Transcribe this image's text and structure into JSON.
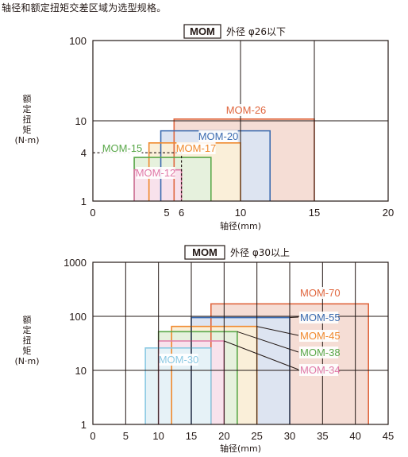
{
  "intro_text": "轴径和额定扭矩交差区域为选型规格。",
  "chart_data": [
    {
      "type": "area",
      "badge": "MOM",
      "title_rest": "外径 φ26以下",
      "xlabel": "轴径(mm)",
      "ylabel_lines": [
        "额",
        "定",
        "扭",
        "矩",
        "(N·m)"
      ],
      "xlim": [
        0,
        20
      ],
      "ylim": [
        1,
        100
      ],
      "yscale": "log",
      "xticks": [
        0,
        5,
        6,
        10,
        15,
        20
      ],
      "yticks": [
        1,
        4,
        10,
        100
      ],
      "grid": "on",
      "guide": {
        "x": 6,
        "y": 4
      },
      "series": [
        {
          "name": "MOM-26",
          "x": [
            5.5,
            15
          ],
          "y": [
            1,
            10.5
          ],
          "color": "#e0673f",
          "fill": "#f5ddd5"
        },
        {
          "name": "MOM-20",
          "x": [
            4.6,
            12
          ],
          "y": [
            1,
            7.5
          ],
          "color": "#3b6bb0",
          "fill": "#dde4f1"
        },
        {
          "name": "MOM-17",
          "x": [
            3.8,
            10
          ],
          "y": [
            1,
            5.3
          ],
          "color": "#f08a2e",
          "fill": "#faefd9"
        },
        {
          "name": "MOM-15",
          "x": [
            2.8,
            8
          ],
          "y": [
            1,
            3.5
          ],
          "color": "#5aa84a",
          "fill": "#e6f1dd"
        },
        {
          "name": "MOM-12",
          "x": [
            2.8,
            6
          ],
          "y": [
            1,
            2.45
          ],
          "color": "#e07aa8",
          "fill": "#f8e2ec"
        }
      ]
    },
    {
      "type": "area",
      "badge": "MOM",
      "title_rest": "外径 φ30以上",
      "xlabel": "轴径(mm)",
      "ylabel_lines": [
        "额",
        "定",
        "扭",
        "矩",
        "(N·m)"
      ],
      "xlim": [
        0,
        45
      ],
      "ylim": [
        1,
        1000
      ],
      "yscale": "log",
      "xticks": [
        0,
        5,
        10,
        15,
        20,
        25,
        30,
        35,
        40,
        45
      ],
      "yticks": [
        1,
        10,
        100,
        1000
      ],
      "grid": "on",
      "series": [
        {
          "name": "MOM-70",
          "x": [
            18,
            42
          ],
          "y": [
            1,
            170
          ],
          "color": "#e0673f",
          "fill": "#f5ddd5"
        },
        {
          "name": "MOM-55",
          "x": [
            15,
            30
          ],
          "y": [
            1,
            95
          ],
          "color": "#3b6bb0",
          "fill": "#dde4f1"
        },
        {
          "name": "MOM-45",
          "x": [
            12,
            25
          ],
          "y": [
            1,
            65
          ],
          "color": "#f08a2e",
          "fill": "#faefd9"
        },
        {
          "name": "MOM-38",
          "x": [
            10,
            22
          ],
          "y": [
            1,
            52
          ],
          "color": "#5aa84a",
          "fill": "#e6f1dd"
        },
        {
          "name": "MOM-34",
          "x": [
            10,
            20
          ],
          "y": [
            1,
            35
          ],
          "color": "#e07aa8",
          "fill": "#f8e2ec"
        },
        {
          "name": "MOM-30",
          "x": [
            8,
            18
          ],
          "y": [
            1,
            26
          ],
          "color": "#8cc9e3",
          "fill": "#e6f2f7"
        }
      ]
    }
  ]
}
